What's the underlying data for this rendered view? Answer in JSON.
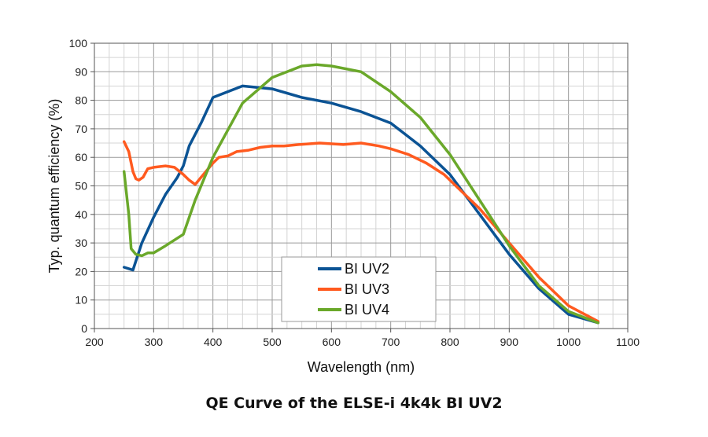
{
  "caption": "QE Curve of the ELSE-i 4k4k BI UV2",
  "chart_data": {
    "type": "line",
    "title": "",
    "xlabel": "Wavelength (nm)",
    "ylabel": "Typ. quantum efficiency (%)",
    "xlim": [
      200,
      1100
    ],
    "ylim": [
      0,
      100
    ],
    "x_ticks": [
      "200",
      "300",
      "400",
      "500",
      "600",
      "700",
      "800",
      "900",
      "1000",
      "1100"
    ],
    "y_ticks": [
      "0",
      "10",
      "20",
      "30",
      "40",
      "50",
      "60",
      "70",
      "80",
      "90",
      "100"
    ],
    "grid": true,
    "legend_position": "bottom-center",
    "series": [
      {
        "name": "BI UV2",
        "color": "#0b5394",
        "points": [
          [
            250,
            21.5
          ],
          [
            265,
            20.5
          ],
          [
            280,
            30
          ],
          [
            300,
            39
          ],
          [
            320,
            47
          ],
          [
            340,
            53
          ],
          [
            350,
            57
          ],
          [
            360,
            64
          ],
          [
            380,
            72
          ],
          [
            400,
            81
          ],
          [
            450,
            85
          ],
          [
            500,
            84
          ],
          [
            550,
            81
          ],
          [
            600,
            79
          ],
          [
            650,
            76
          ],
          [
            700,
            72
          ],
          [
            750,
            64
          ],
          [
            800,
            54
          ],
          [
            850,
            40
          ],
          [
            900,
            26
          ],
          [
            950,
            14
          ],
          [
            1000,
            5
          ],
          [
            1050,
            2
          ]
        ]
      },
      {
        "name": "BI UV3",
        "color": "#ff5a1f",
        "points": [
          [
            250,
            65.5
          ],
          [
            258,
            62
          ],
          [
            265,
            55
          ],
          [
            270,
            52.5
          ],
          [
            275,
            52
          ],
          [
            282,
            53
          ],
          [
            290,
            56
          ],
          [
            300,
            56.5
          ],
          [
            320,
            57
          ],
          [
            335,
            56.5
          ],
          [
            350,
            54
          ],
          [
            360,
            52
          ],
          [
            370,
            50.5
          ],
          [
            380,
            53
          ],
          [
            400,
            58
          ],
          [
            410,
            60
          ],
          [
            425,
            60.5
          ],
          [
            440,
            62
          ],
          [
            460,
            62.5
          ],
          [
            480,
            63.5
          ],
          [
            500,
            64
          ],
          [
            520,
            64
          ],
          [
            545,
            64.5
          ],
          [
            580,
            65
          ],
          [
            620,
            64.5
          ],
          [
            650,
            65
          ],
          [
            680,
            64
          ],
          [
            700,
            63
          ],
          [
            730,
            61
          ],
          [
            760,
            58
          ],
          [
            790,
            54
          ],
          [
            800,
            52
          ],
          [
            850,
            42
          ],
          [
            900,
            30
          ],
          [
            950,
            18
          ],
          [
            1000,
            8
          ],
          [
            1050,
            2.5
          ]
        ]
      },
      {
        "name": "BI UV4",
        "color": "#6aa82a",
        "points": [
          [
            250,
            55
          ],
          [
            258,
            40
          ],
          [
            262,
            28
          ],
          [
            270,
            26
          ],
          [
            280,
            25.5
          ],
          [
            290,
            26.5
          ],
          [
            300,
            26.5
          ],
          [
            320,
            29
          ],
          [
            350,
            33
          ],
          [
            370,
            45
          ],
          [
            400,
            60
          ],
          [
            450,
            79
          ],
          [
            500,
            88
          ],
          [
            550,
            92
          ],
          [
            575,
            92.5
          ],
          [
            600,
            92
          ],
          [
            650,
            90
          ],
          [
            700,
            83
          ],
          [
            750,
            74
          ],
          [
            800,
            61
          ],
          [
            850,
            45
          ],
          [
            900,
            29
          ],
          [
            950,
            15
          ],
          [
            1000,
            6
          ],
          [
            1050,
            2
          ]
        ]
      }
    ]
  }
}
